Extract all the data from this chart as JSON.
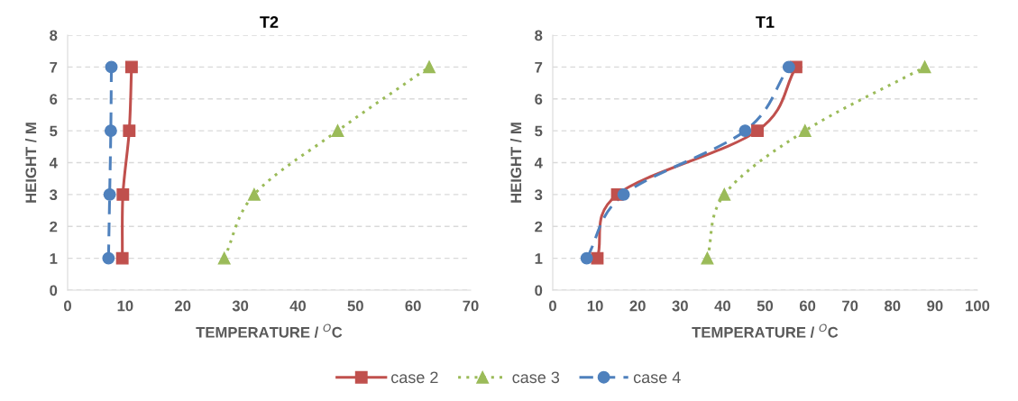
{
  "chart_data": [
    {
      "type": "line",
      "title": "T2",
      "xlabel": "TEMPERATURE / $^{O}$C",
      "ylabel": "HEIGHT / M",
      "xlim": [
        0,
        70
      ],
      "xticks": [
        0,
        10,
        20,
        30,
        40,
        50,
        60,
        70
      ],
      "ylim": [
        0,
        8
      ],
      "yticks": [
        0,
        1,
        2,
        3,
        4,
        5,
        6,
        7,
        8
      ],
      "grid": "y",
      "legend": "bottom",
      "series": [
        {
          "name": "case 2",
          "color": "#c0504d",
          "marker": "square",
          "line_style": "solid",
          "x": [
            9.5,
            9.6,
            10.7,
            11.1
          ],
          "values": [
            1,
            3,
            5,
            7
          ]
        },
        {
          "name": "case 3",
          "color": "#9bbb59",
          "marker": "triangle",
          "line_style": "dotted",
          "x": [
            27.2,
            32.4,
            46.9,
            62.8
          ],
          "values": [
            1,
            3,
            5,
            7
          ]
        },
        {
          "name": "case 4",
          "color": "#4f81bd",
          "marker": "circle",
          "line_style": "dashed",
          "x": [
            7.1,
            7.3,
            7.5,
            7.6
          ],
          "values": [
            1,
            3,
            5,
            7
          ]
        }
      ]
    },
    {
      "type": "line",
      "title": "T1",
      "xlabel": "TEMPERATURE / $^{O}$C",
      "ylabel": "HEIGHT / M",
      "xlim": [
        0,
        100
      ],
      "xticks": [
        0,
        10,
        20,
        30,
        40,
        50,
        60,
        70,
        80,
        90,
        100
      ],
      "ylim": [
        0,
        8
      ],
      "yticks": [
        0,
        1,
        2,
        3,
        4,
        5,
        6,
        7,
        8
      ],
      "grid": "y",
      "legend": "bottom",
      "series": [
        {
          "name": "case 2",
          "color": "#c0504d",
          "marker": "square",
          "line_style": "solid",
          "x": [
            10.5,
            15.2,
            48.2,
            57.3
          ],
          "values": [
            1,
            3,
            5,
            7
          ]
        },
        {
          "name": "case 3",
          "color": "#9bbb59",
          "marker": "triangle",
          "line_style": "dotted",
          "x": [
            36.4,
            40.4,
            59.4,
            87.6
          ],
          "values": [
            1,
            3,
            5,
            7
          ]
        },
        {
          "name": "case 4",
          "color": "#4f81bd",
          "marker": "circle",
          "line_style": "dashed",
          "x": [
            8.0,
            16.7,
            45.3,
            55.6
          ],
          "values": [
            1,
            3,
            5,
            7
          ]
        }
      ]
    }
  ]
}
